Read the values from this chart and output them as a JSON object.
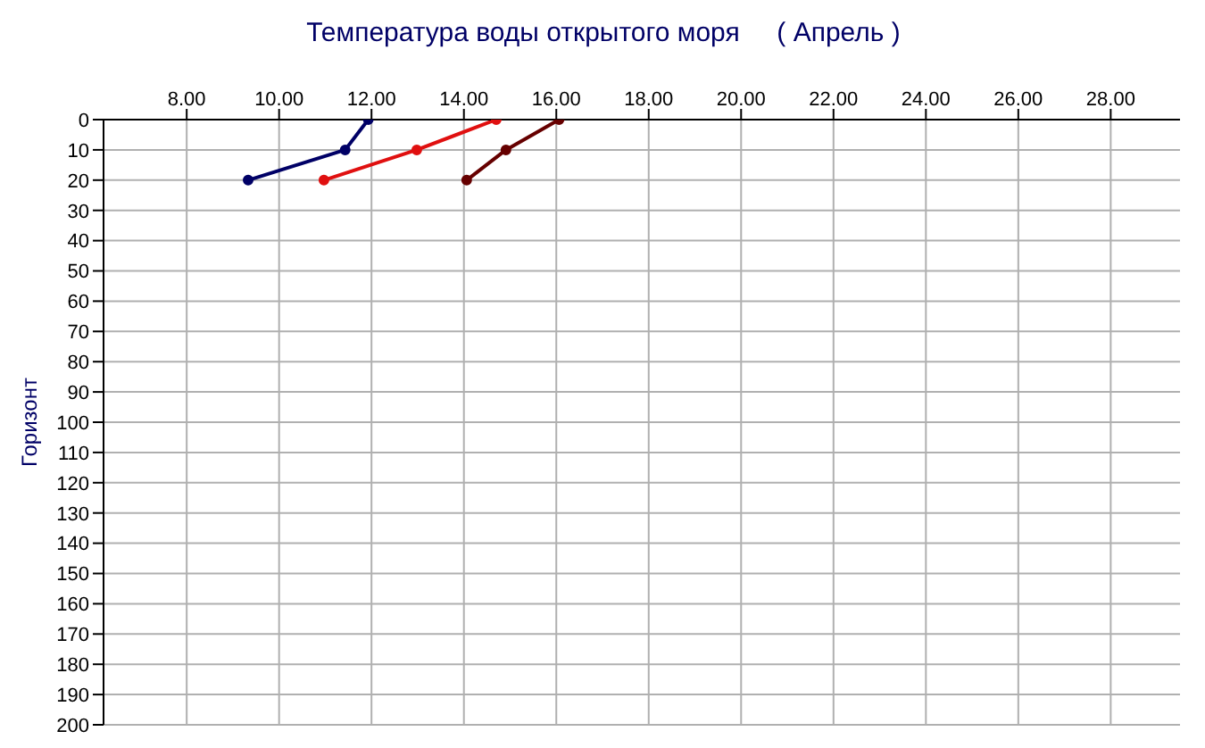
{
  "chart_data": {
    "type": "line",
    "title": "Температура воды открытого моря     ( Апрель )",
    "ylabel": "Горизонт",
    "series": [
      {
        "color": "#000066",
        "x": [
          9.33,
          11.43,
          11.93
        ],
        "values": [
          20,
          10,
          0
        ]
      },
      {
        "color": "#e01010",
        "x": [
          10.97,
          12.98,
          14.7
        ],
        "values": [
          20,
          10,
          0
        ]
      },
      {
        "color": "#660000",
        "x": [
          14.06,
          14.91,
          16.06
        ],
        "values": [
          20,
          10,
          0
        ]
      }
    ],
    "xlim": [
      6.2,
      29.5
    ],
    "xticks": [
      {
        "value": 8,
        "label": "8.00"
      },
      {
        "value": 10,
        "label": "10.00"
      },
      {
        "value": 12,
        "label": "12.00"
      },
      {
        "value": 14,
        "label": "14.00"
      },
      {
        "value": 16,
        "label": "16.00"
      },
      {
        "value": 18,
        "label": "18.00"
      },
      {
        "value": 20,
        "label": "20.00"
      },
      {
        "value": 22,
        "label": "22.00"
      },
      {
        "value": 24,
        "label": "24.00"
      },
      {
        "value": 26,
        "label": "26.00"
      },
      {
        "value": 28,
        "label": "28.00"
      }
    ],
    "ylim": [
      200,
      0
    ],
    "yticks": [
      0,
      10,
      20,
      30,
      40,
      50,
      60,
      70,
      80,
      90,
      100,
      110,
      120,
      130,
      140,
      150,
      160,
      170,
      180,
      190,
      200
    ],
    "grid": true,
    "marker": "circle",
    "line_style": "solid"
  }
}
